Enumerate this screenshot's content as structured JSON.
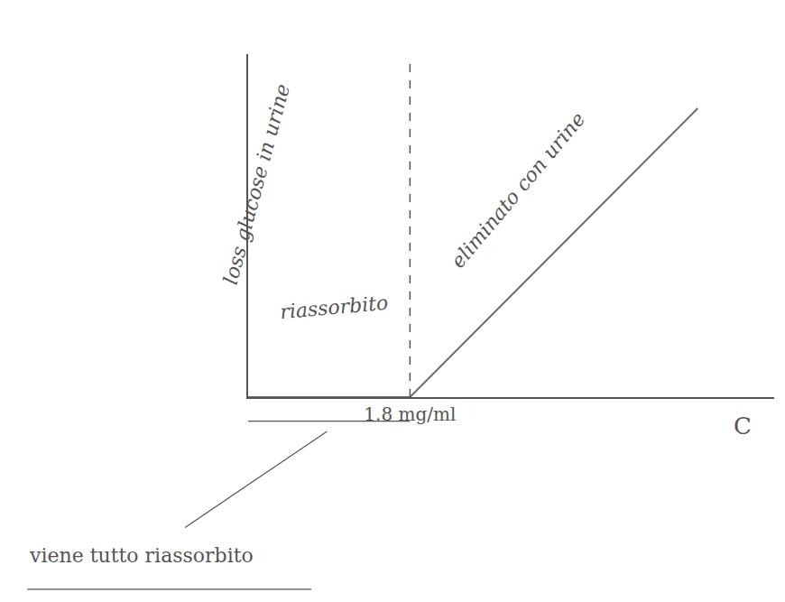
{
  "chart_data": {
    "type": "line",
    "x_label": "C",
    "y_label": "loss glucose in urine",
    "x": [
      0,
      1.8,
      5.0
    ],
    "values": [
      0,
      0,
      3.2
    ],
    "color": "#6a6a6a",
    "threshold": 1.8,
    "xlim": [
      0,
      5.85
    ],
    "ylim": [
      0,
      3.8
    ],
    "xticks": [
      {
        "value": 1.8,
        "label": "1.8 mg/ml"
      }
    ],
    "yticks": [],
    "tick_labels": "x",
    "grid": false,
    "annotations": [
      {
        "text": "riassorbito",
        "x": 0.95,
        "y": 1.0
      },
      {
        "text": "eliminato con urine",
        "x": 3.0,
        "y": 2.3
      }
    ],
    "caption": "viene tutto riassorbito"
  }
}
